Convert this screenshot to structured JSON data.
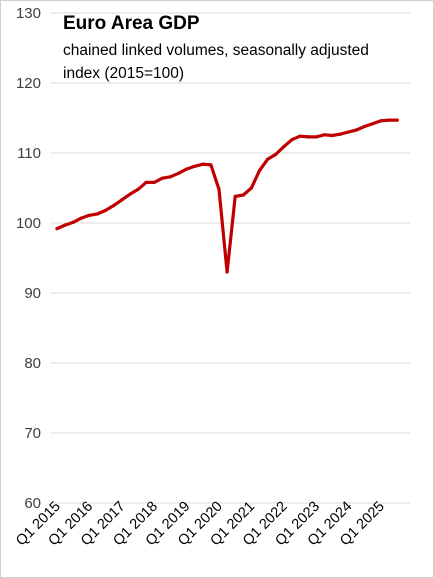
{
  "chart_data": {
    "type": "line",
    "title": "Euro Area GDP",
    "subtitle_lines": [
      "chained linked volumes, seasonally adjusted",
      "index (2015=100)"
    ],
    "xlabel": "",
    "ylabel": "",
    "ylim": [
      60,
      130
    ],
    "yticks": [
      60,
      70,
      80,
      90,
      100,
      110,
      120,
      130
    ],
    "grid": true,
    "legend": "none",
    "x_tick_labels": [
      "Q1 2015",
      "Q1 2016",
      "Q1 2017",
      "Q1 2018",
      "Q1 2019",
      "Q1 2020",
      "Q1 2021",
      "Q1 2022",
      "Q1 2023",
      "Q1 2024",
      "Q1 2025"
    ],
    "x": [
      "Q1 2015",
      "Q2 2015",
      "Q3 2015",
      "Q4 2015",
      "Q1 2016",
      "Q2 2016",
      "Q3 2016",
      "Q4 2016",
      "Q1 2017",
      "Q2 2017",
      "Q3 2017",
      "Q4 2017",
      "Q1 2018",
      "Q2 2018",
      "Q3 2018",
      "Q4 2018",
      "Q1 2019",
      "Q2 2019",
      "Q3 2019",
      "Q4 2019",
      "Q1 2020",
      "Q2 2020",
      "Q3 2020",
      "Q4 2020",
      "Q1 2021",
      "Q2 2021",
      "Q3 2021",
      "Q4 2021",
      "Q1 2022",
      "Q2 2022",
      "Q3 2022",
      "Q4 2022",
      "Q1 2023",
      "Q2 2023",
      "Q3 2023",
      "Q4 2023",
      "Q1 2024",
      "Q2 2024",
      "Q3 2024",
      "Q4 2024",
      "Q1 2025",
      "Q2 2025",
      "Q3 2025"
    ],
    "series": [
      {
        "values": [
          99.2,
          99.7,
          100.1,
          100.7,
          101.1,
          101.3,
          101.8,
          102.5,
          103.3,
          104.1,
          104.8,
          105.8,
          105.8,
          106.4,
          106.6,
          107.1,
          107.7,
          108.1,
          108.4,
          108.3,
          104.8,
          93.0,
          103.8,
          104.0,
          105.0,
          107.5,
          109.1,
          109.8,
          110.9,
          111.9,
          112.4,
          112.3,
          112.3,
          112.6,
          112.5,
          112.7,
          113.0,
          113.3,
          113.8,
          114.2,
          114.6,
          114.7,
          114.7
        ],
        "color": "#c00000"
      }
    ]
  }
}
